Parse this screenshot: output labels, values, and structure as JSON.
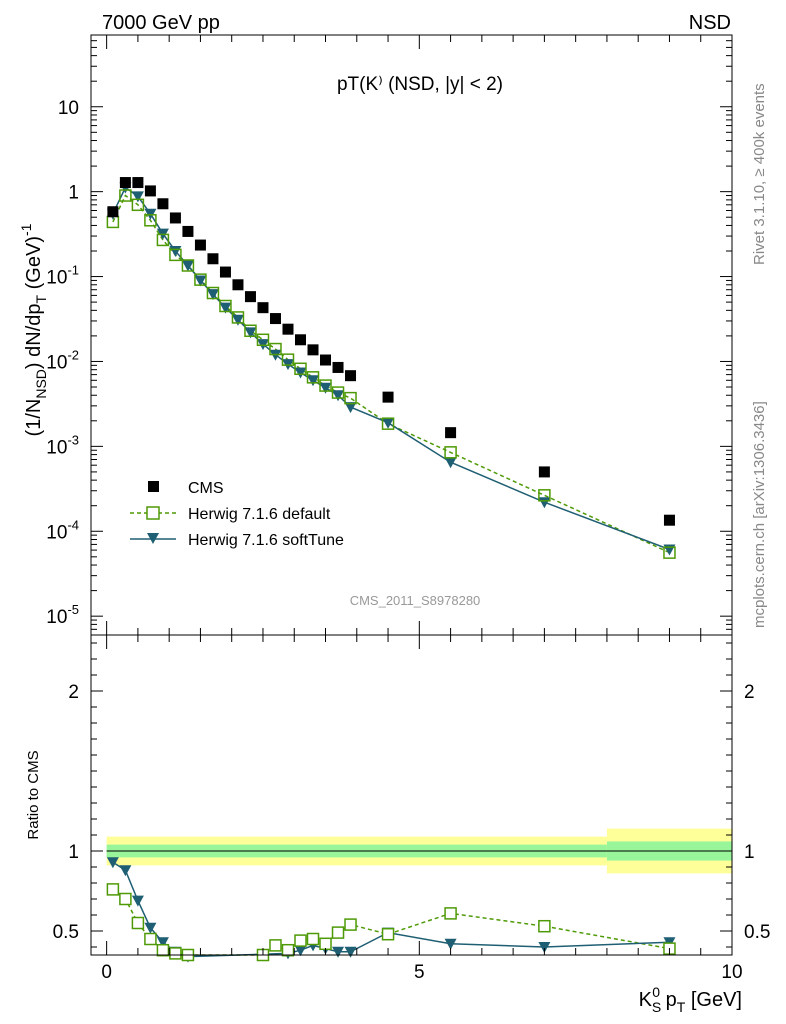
{
  "header": {
    "energy": "7000 GeV pp",
    "process": "NSD",
    "plot_title": "pT(K⁾ (NSD, |y| < 2)",
    "analysis_id": "CMS_2011_S8978280",
    "side_text_top": "Rivet 3.1.10, ≥ 400k events",
    "side_text_bottom": "mcplots.cern.ch [arXiv:1306.3436]"
  },
  "legend": [
    {
      "label": "CMS",
      "style": "data"
    },
    {
      "label": "Herwig 7.1.6 default",
      "style": "default"
    },
    {
      "label": "Herwig 7.1.6 softTune",
      "style": "soft"
    }
  ],
  "colors": {
    "data": "#000000",
    "default": "#4e9a06",
    "soft": "#1f5f73",
    "band_inner": "#99f599",
    "band_outer": "#ffff99"
  },
  "chart_data": [
    {
      "type": "scatter",
      "panel": "main",
      "ylabel": "(1/N_NSD) dN/dp_T (GeV)^-1",
      "xlim": [
        -0.25,
        10
      ],
      "ylim": [
        6e-06,
        70
      ],
      "yscale": "log",
      "y_ticks": [
        "10^-5",
        "10^-4",
        "10^-3",
        "10^-2",
        "10^-1",
        "1",
        "10"
      ],
      "series": [
        {
          "name": "CMS",
          "x": [
            0.1,
            0.3,
            0.5,
            0.7,
            0.9,
            1.1,
            1.3,
            1.5,
            1.7,
            1.9,
            2.1,
            2.3,
            2.5,
            2.7,
            2.9,
            3.1,
            3.3,
            3.5,
            3.7,
            3.9,
            4.5,
            5.5,
            7.0,
            9.0
          ],
          "y": [
            0.58,
            1.28,
            1.28,
            1.02,
            0.72,
            0.49,
            0.34,
            0.235,
            0.162,
            0.113,
            0.08,
            0.058,
            0.043,
            0.032,
            0.024,
            0.018,
            0.0137,
            0.0104,
            0.0085,
            0.0068,
            0.0038,
            0.00145,
            0.0005,
            0.000135
          ]
        },
        {
          "name": "Herwig 7.1.6 default",
          "x": [
            0.1,
            0.3,
            0.5,
            0.7,
            0.9,
            1.1,
            1.3,
            1.5,
            1.7,
            1.9,
            2.1,
            2.3,
            2.5,
            2.7,
            2.9,
            3.1,
            3.3,
            3.5,
            3.7,
            3.9,
            4.5,
            5.5,
            7.0,
            9.0
          ],
          "y": [
            0.44,
            0.9,
            0.7,
            0.46,
            0.27,
            0.18,
            0.135,
            0.092,
            0.064,
            0.045,
            0.033,
            0.023,
            0.018,
            0.014,
            0.0105,
            0.0082,
            0.0065,
            0.0052,
            0.0043,
            0.0037,
            0.00185,
            0.00085,
            0.000265,
            5.6e-05
          ]
        },
        {
          "name": "Herwig 7.1.6 softTune",
          "x": [
            0.1,
            0.3,
            0.5,
            0.7,
            0.9,
            1.1,
            1.3,
            1.5,
            1.7,
            1.9,
            2.1,
            2.3,
            2.5,
            2.7,
            2.9,
            3.1,
            3.3,
            3.5,
            3.7,
            3.9,
            4.5,
            5.5,
            7.0,
            9.0
          ],
          "y": [
            0.55,
            1.12,
            0.88,
            0.55,
            0.32,
            0.2,
            0.135,
            0.09,
            0.062,
            0.043,
            0.031,
            0.022,
            0.016,
            0.012,
            0.0093,
            0.0074,
            0.006,
            0.0049,
            0.004,
            0.0029,
            0.0019,
            0.00065,
            0.00022,
            6.1e-05
          ]
        }
      ]
    },
    {
      "type": "line",
      "panel": "ratio",
      "ylabel": "Ratio to CMS",
      "xlabel": "K_S^0 p_T [GeV]",
      "xlim": [
        -0.25,
        10
      ],
      "ylim": [
        0.35,
        2.35
      ],
      "x_ticks": [
        "0",
        "5",
        "10"
      ],
      "y_ticks": [
        "0.5",
        "1",
        "2"
      ],
      "band": {
        "x_edges": [
          0,
          8,
          10
        ],
        "inner_half": [
          0.04,
          0.06
        ],
        "outer_half": [
          0.09,
          0.14
        ]
      },
      "series": [
        {
          "name": "Herwig 7.1.6 default",
          "x": [
            0.1,
            0.3,
            0.5,
            0.7,
            0.9,
            1.1,
            1.3,
            2.5,
            2.7,
            2.9,
            3.1,
            3.3,
            3.5,
            3.7,
            3.9,
            4.5,
            5.5,
            7.0,
            9.0
          ],
          "y": [
            0.76,
            0.7,
            0.55,
            0.45,
            0.38,
            0.36,
            0.35,
            0.35,
            0.41,
            0.38,
            0.44,
            0.45,
            0.42,
            0.49,
            0.54,
            0.48,
            0.61,
            0.53,
            0.39
          ]
        },
        {
          "name": "Herwig 7.1.6 softTune",
          "x": [
            0.1,
            0.3,
            0.5,
            0.7,
            0.9,
            1.1,
            1.3,
            2.9,
            3.1,
            3.3,
            3.5,
            3.7,
            3.9,
            4.5,
            5.5,
            7.0,
            9.0
          ],
          "y": [
            0.93,
            0.88,
            0.69,
            0.52,
            0.43,
            0.37,
            0.34,
            0.36,
            0.38,
            0.41,
            0.39,
            0.37,
            0.37,
            0.49,
            0.42,
            0.4,
            0.43
          ]
        }
      ]
    }
  ]
}
